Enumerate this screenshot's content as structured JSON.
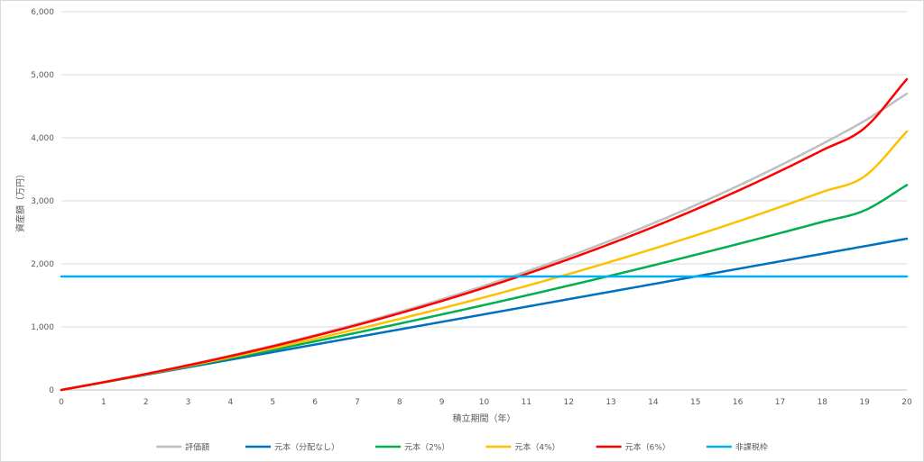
{
  "chart_data": {
    "type": "line",
    "title": "",
    "xlabel": "積立期間（年）",
    "ylabel": "資産額（万円）",
    "xlim": [
      0,
      20
    ],
    "ylim": [
      0,
      6000
    ],
    "x_ticks": [
      0,
      1,
      2,
      3,
      4,
      5,
      6,
      7,
      8,
      9,
      10,
      11,
      12,
      13,
      14,
      15,
      16,
      17,
      18,
      19,
      20
    ],
    "y_ticks": [
      0,
      1000,
      2000,
      3000,
      4000,
      5000,
      6000
    ],
    "y_tick_labels": [
      "0",
      "1,000",
      "2,000",
      "3,000",
      "4,000",
      "5,000",
      "6,000"
    ],
    "grid": "horizontal",
    "legend_position": "bottom",
    "x": [
      0,
      1,
      2,
      3,
      4,
      5,
      6,
      7,
      8,
      9,
      10,
      11,
      12,
      13,
      14,
      15,
      16,
      17,
      18,
      19,
      20
    ],
    "series": [
      {
        "name": "評価額",
        "color": "#bfbfbf",
        "values": [
          0,
          124,
          256,
          396,
          545,
          703,
          871,
          1049,
          1238,
          1439,
          1652,
          1878,
          2118,
          2373,
          2644,
          2931,
          3236,
          3560,
          3904,
          4269,
          4700
        ]
      },
      {
        "name": "元本（分配なし）",
        "color": "#0070c0",
        "values": [
          0,
          120,
          240,
          360,
          480,
          600,
          720,
          840,
          960,
          1080,
          1200,
          1320,
          1440,
          1560,
          1680,
          1800,
          1920,
          2040,
          2160,
          2280,
          2400
        ]
      },
      {
        "name": "元本（2%）",
        "color": "#00b050",
        "values": [
          0,
          121,
          245,
          372,
          502,
          635,
          771,
          910,
          1052,
          1198,
          1347,
          1499,
          1655,
          1814,
          1977,
          2144,
          2314,
          2488,
          2666,
          2848,
          3250
        ]
      },
      {
        "name": "元本（4%）",
        "color": "#ffc000",
        "values": [
          0,
          122,
          249,
          381,
          519,
          662,
          811,
          966,
          1127,
          1295,
          1469,
          1650,
          1839,
          2035,
          2239,
          2451,
          2672,
          2902,
          3141,
          3389,
          4100
        ]
      },
      {
        "name": "元本（6%）",
        "color": "#ff0000",
        "values": [
          0,
          123,
          253,
          391,
          537,
          692,
          857,
          1031,
          1216,
          1412,
          1620,
          1840,
          2074,
          2322,
          2584,
          2863,
          3158,
          3471,
          3803,
          4155,
          4930
        ]
      },
      {
        "name": "非課税枠",
        "color": "#00b0f0",
        "values": [
          1800,
          1800,
          1800,
          1800,
          1800,
          1800,
          1800,
          1800,
          1800,
          1800,
          1800,
          1800,
          1800,
          1800,
          1800,
          1800,
          1800,
          1800,
          1800,
          1800,
          1800
        ]
      }
    ]
  }
}
